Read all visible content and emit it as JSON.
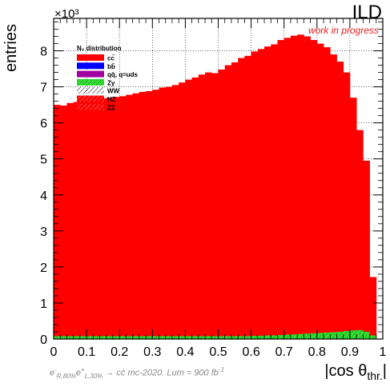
{
  "header": {
    "experiment_label": "ILD",
    "status_label": "work in progress",
    "exponent_label": "×10³"
  },
  "footer": {
    "beam_e1": "e",
    "beam_e1_sup": "-",
    "beam_e1_sub": "R,80%",
    "beam_e2": "e",
    "beam_e2_sup": "+",
    "beam_e2_sub": "L,30%",
    "process": " → cc̄ mc-2020. Lum = 900 fb",
    "lumi_sup": "-1"
  },
  "colors": {
    "cc": "#ff0000",
    "bb": "#0000ff",
    "qq": "#a000a0",
    "zgamma": "#33dd33",
    "frame": "#000000"
  },
  "chart_data": {
    "type": "bar",
    "xlabel": "|cos θthr.|",
    "ylabel": "entries",
    "xlim": [
      0,
      1
    ],
    "ylim": [
      0,
      8.9
    ],
    "y_unit_multiplier": "×10³",
    "x_ticks": [
      "0",
      "0.1",
      "0.2",
      "0.3",
      "0.4",
      "0.5",
      "0.6",
      "0.7",
      "0.8",
      "0.9",
      "1"
    ],
    "y_ticks": [
      "0",
      "1",
      "2",
      "3",
      "4",
      "5",
      "6",
      "7",
      "8"
    ],
    "grid": true,
    "legend_position": "top-left",
    "legend_title": "N₂ distribution",
    "legend": [
      {
        "label": "cc̄",
        "color_key": "cc",
        "style": "solid"
      },
      {
        "label": "bb̄",
        "color_key": "bb",
        "style": "solid"
      },
      {
        "label": "qq̄, q=uds",
        "color_key": "qq",
        "style": "solid"
      },
      {
        "label": "Zγ",
        "color_key": "zgamma",
        "style": "hatch"
      },
      {
        "label": "WW",
        "color_key": "frame",
        "style": "hatch"
      },
      {
        "label": "HZ",
        "color_key": "cc",
        "style": "hatch"
      },
      {
        "label": "ZZ",
        "color_key": "cc",
        "style": "hatch"
      }
    ],
    "bin_width": 0.02,
    "bin_low_edges": [
      0,
      0.02,
      0.04,
      0.06,
      0.08,
      0.1,
      0.12,
      0.14,
      0.16,
      0.18,
      0.2,
      0.22,
      0.24,
      0.26,
      0.28,
      0.3,
      0.32,
      0.34,
      0.36,
      0.38,
      0.4,
      0.42,
      0.44,
      0.46,
      0.48,
      0.5,
      0.52,
      0.54,
      0.56,
      0.58,
      0.6,
      0.62,
      0.64,
      0.66,
      0.68,
      0.7,
      0.72,
      0.74,
      0.76,
      0.78,
      0.8,
      0.82,
      0.84,
      0.86,
      0.88,
      0.9,
      0.92,
      0.94,
      0.96,
      0.98
    ],
    "series": [
      {
        "name": "cc̄",
        "color_key": "cc",
        "values": [
          6.5,
          6.48,
          6.55,
          6.58,
          6.62,
          6.66,
          6.6,
          6.68,
          6.7,
          6.72,
          6.74,
          6.78,
          6.82,
          6.86,
          6.88,
          6.92,
          6.98,
          7.0,
          7.05,
          7.12,
          7.2,
          7.26,
          7.34,
          7.4,
          7.38,
          7.48,
          7.6,
          7.68,
          7.8,
          7.86,
          7.98,
          8.05,
          8.12,
          8.18,
          8.3,
          8.36,
          8.42,
          8.45,
          8.4,
          8.3,
          8.2,
          8.1,
          7.9,
          7.7,
          7.4,
          6.7,
          5.8,
          4.95,
          1.72,
          0.0
        ]
      },
      {
        "name": "Zγ",
        "color_key": "zgamma",
        "values": [
          0.08,
          0.08,
          0.08,
          0.08,
          0.08,
          0.08,
          0.08,
          0.08,
          0.08,
          0.08,
          0.08,
          0.08,
          0.08,
          0.08,
          0.08,
          0.08,
          0.08,
          0.08,
          0.08,
          0.08,
          0.08,
          0.08,
          0.08,
          0.08,
          0.08,
          0.08,
          0.08,
          0.08,
          0.08,
          0.08,
          0.09,
          0.09,
          0.1,
          0.1,
          0.11,
          0.12,
          0.13,
          0.14,
          0.15,
          0.16,
          0.17,
          0.18,
          0.19,
          0.2,
          0.22,
          0.24,
          0.25,
          0.2,
          0.1,
          0.0
        ]
      }
    ]
  }
}
